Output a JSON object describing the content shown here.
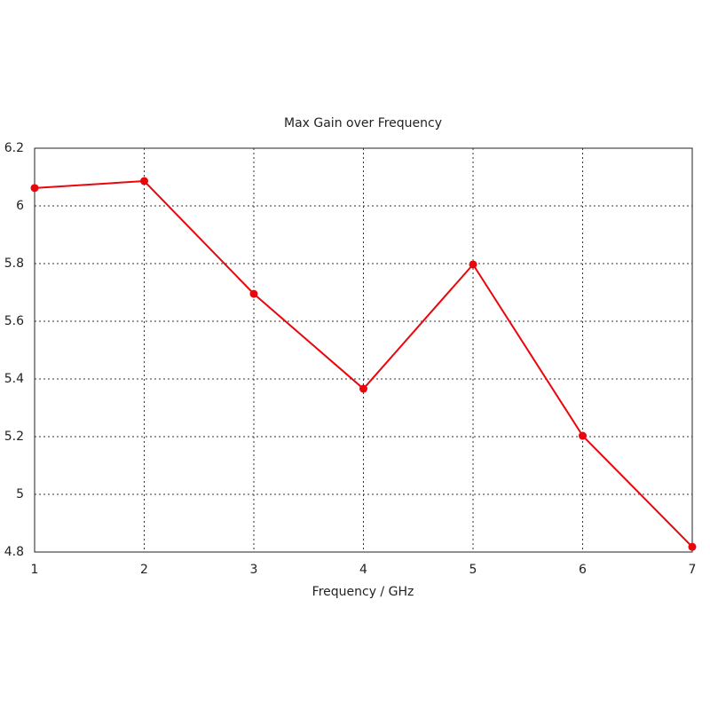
{
  "chart_data": {
    "type": "line",
    "title": "Max Gain over Frequency",
    "x_label": "Frequency / GHz",
    "x": [
      1,
      2,
      3,
      4,
      5,
      6,
      7
    ],
    "series": [
      {
        "color": "#e8070c",
        "values": [
          6.062,
          6.086,
          5.695,
          5.366,
          5.797,
          5.203,
          4.818
        ]
      }
    ],
    "xlim": [
      1,
      7
    ],
    "xticks": [
      1,
      2,
      3,
      4,
      5,
      6,
      7
    ],
    "ylim": [
      4.8,
      6.2
    ],
    "yticks": [
      4.8,
      5,
      5.2,
      5.4,
      5.6,
      5.8,
      6,
      6.2
    ],
    "grid": true
  }
}
